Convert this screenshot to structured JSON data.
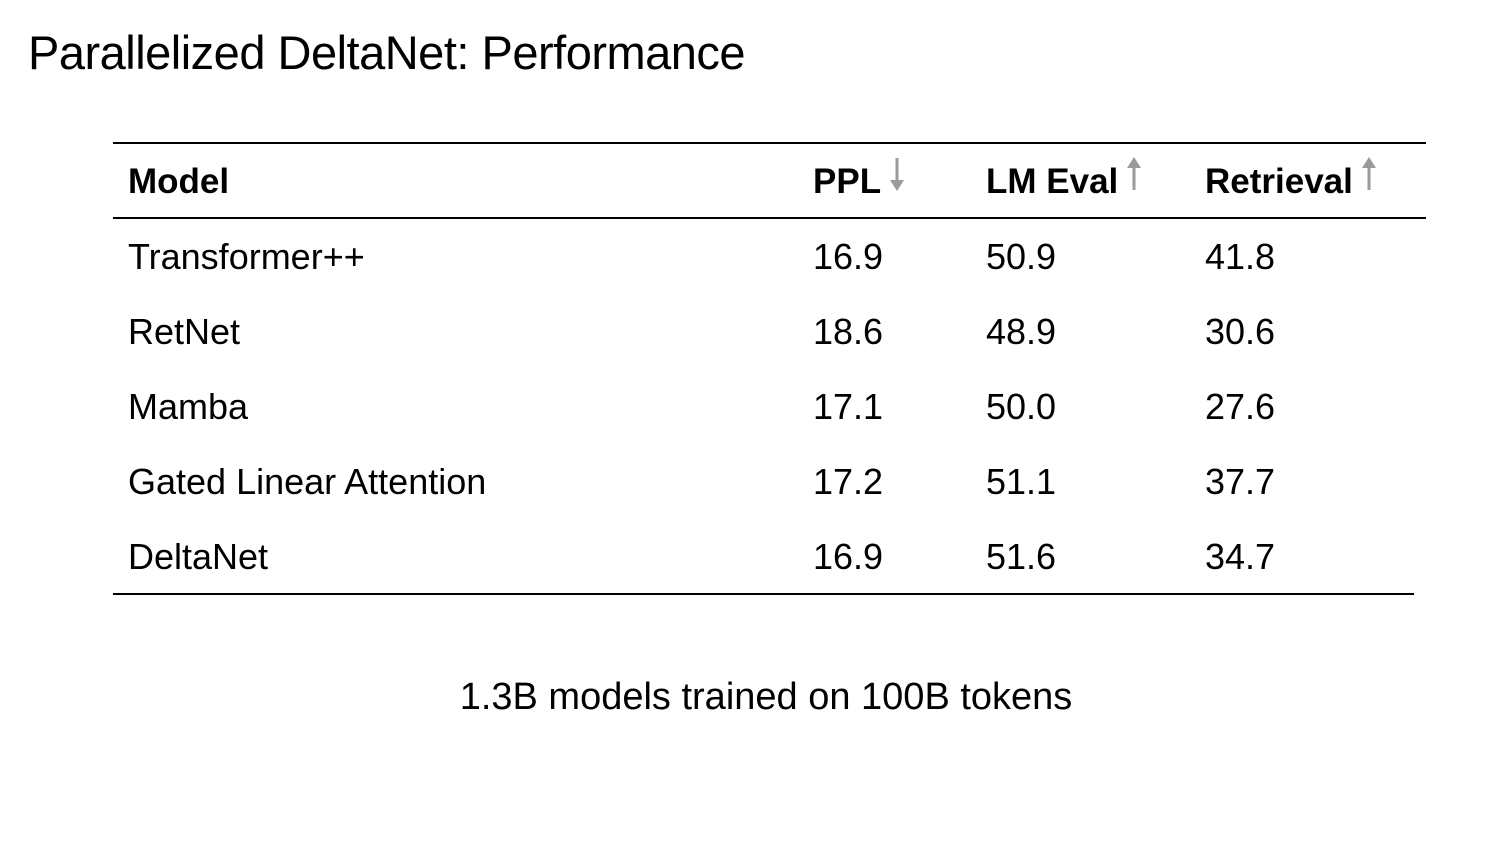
{
  "slide": {
    "title": "Parallelized DeltaNet: Performance",
    "caption": "1.3B models trained on 100B tokens"
  },
  "table": {
    "headers": {
      "model": "Model",
      "ppl": "PPL",
      "lm_eval": "LM Eval",
      "retrieval": "Retrieval"
    },
    "header_arrows": {
      "ppl": "arrow-down-icon",
      "lm_eval": "arrow-up-icon",
      "retrieval": "arrow-up-icon"
    },
    "arrow_color": "#9a9a9a",
    "rows": [
      {
        "model": "Transformer++",
        "ppl": "16.9",
        "lm_eval": "50.9",
        "retrieval": "41.8"
      },
      {
        "model": "RetNet",
        "ppl": "18.6",
        "lm_eval": "48.9",
        "retrieval": "30.6"
      },
      {
        "model": "Mamba",
        "ppl": "17.1",
        "lm_eval": "50.0",
        "retrieval": "27.6"
      },
      {
        "model": "Gated Linear Attention",
        "ppl": "17.2",
        "lm_eval": "51.1",
        "retrieval": "37.7"
      },
      {
        "model": "DeltaNet",
        "ppl": "16.9",
        "lm_eval": "51.6",
        "retrieval": "34.7"
      }
    ]
  }
}
